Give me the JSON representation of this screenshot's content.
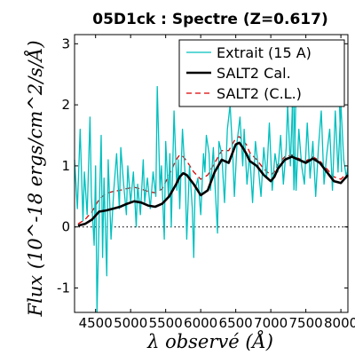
{
  "chart_data": {
    "type": "line",
    "title": "05D1ck : Spectre (Z=0.617)",
    "xlabel": "λ observé (Å)",
    "ylabel": "Flux (10^-18 ergs/cm^2/s/Å)",
    "xlim": [
      4200,
      8100
    ],
    "ylim": [
      -1.4,
      3.15
    ],
    "xticks": [
      4500,
      5000,
      5500,
      6000,
      6500,
      7000,
      7500,
      8000
    ],
    "xtick_labels": [
      "4500",
      "5000",
      "5500",
      "6000",
      "6500",
      "7000",
      "7500",
      "8000"
    ],
    "yticks": [
      -1,
      0,
      1,
      2,
      3
    ],
    "ytick_labels": [
      "-1",
      "0",
      "1",
      "2",
      "3"
    ],
    "zero_line": "dotted",
    "legend_position": "top-right",
    "series": [
      {
        "name": "Extrait (15 A)",
        "style": "solid",
        "color": "#00bfbf",
        "x": [
          4200,
          4240,
          4280,
          4320,
          4340,
          4380,
          4420,
          4440,
          4480,
          4500,
          4520,
          4560,
          4580,
          4600,
          4620,
          4660,
          4680,
          4720,
          4760,
          4800,
          4840,
          4860,
          4900,
          4940,
          4960,
          5000,
          5040,
          5080,
          5100,
          5140,
          5180,
          5200,
          5240,
          5280,
          5320,
          5360,
          5380,
          5420,
          5440,
          5480,
          5500,
          5540,
          5560,
          5580,
          5620,
          5660,
          5680,
          5700,
          5740,
          5780,
          5800,
          5840,
          5880,
          5900,
          5920,
          5960,
          6000,
          6040,
          6060,
          6080,
          6120,
          6140,
          6180,
          6200,
          6240,
          6260,
          6300,
          6340,
          6380,
          6420,
          6460,
          6480,
          6520,
          6560,
          6600,
          6620,
          6660,
          6700,
          6740,
          6780,
          6820,
          6860,
          6900,
          6940,
          6980,
          7020,
          7060,
          7100,
          7140,
          7180,
          7220,
          7240,
          7280,
          7320,
          7360,
          7400,
          7440,
          7480,
          7520,
          7560,
          7600,
          7640,
          7680,
          7720,
          7760,
          7800,
          7840,
          7880,
          7920,
          7960,
          8000,
          8040,
          8080,
          8100
        ],
        "y": [
          1.1,
          0.3,
          1.6,
          0.1,
          0.9,
          0.2,
          1.8,
          0.5,
          -0.3,
          1.0,
          -1.4,
          0.6,
          1.5,
          -0.5,
          0.8,
          -0.8,
          1.1,
          -0.2,
          0.6,
          1.2,
          0.3,
          1.3,
          0.7,
          0.2,
          1.0,
          0.4,
          0.9,
          0.0,
          0.7,
          0.2,
          1.1,
          0.4,
          0.8,
          0.3,
          0.9,
          0.5,
          2.3,
          0.6,
          1.0,
          -0.2,
          1.4,
          0.5,
          1.2,
          0.0,
          1.9,
          0.6,
          1.1,
          0.3,
          1.6,
          0.8,
          -0.2,
          1.0,
          0.3,
          -0.5,
          0.6,
          0.8,
          0.2,
          1.2,
          0.9,
          1.5,
          1.2,
          0.6,
          1.3,
          0.8,
          -0.1,
          1.4,
          1.2,
          0.4,
          1.6,
          2.0,
          1.1,
          0.5,
          1.4,
          1.8,
          1.0,
          1.6,
          0.7,
          1.2,
          0.4,
          1.4,
          1.0,
          0.5,
          1.3,
          0.8,
          1.7,
          0.6,
          1.2,
          0.9,
          1.5,
          0.7,
          1.3,
          2.0,
          1.0,
          2.4,
          0.6,
          1.6,
          1.0,
          0.7,
          1.7,
          0.8,
          1.4,
          0.5,
          1.3,
          1.9,
          0.7,
          1.2,
          1.6,
          0.6,
          1.9,
          0.9,
          2.0,
          1.1,
          0.8,
          1.0
        ],
        "x_extra": [
          7300,
          7330,
          7360,
          7980,
          8010
        ],
        "y_extra": [
          2.5,
          0.6,
          2.3,
          2.0,
          0.9
        ]
      },
      {
        "name": "SALT2 Cal.",
        "style": "solid",
        "color": "#000000",
        "x": [
          4250,
          4350,
          4450,
          4550,
          4650,
          4750,
          4850,
          4950,
          5050,
          5150,
          5250,
          5350,
          5450,
          5550,
          5650,
          5700,
          5750,
          5800,
          5900,
          6000,
          6100,
          6200,
          6300,
          6400,
          6500,
          6550,
          6600,
          6650,
          6700,
          6800,
          6900,
          7000,
          7050,
          7100,
          7200,
          7300,
          7400,
          7500,
          7600,
          7700,
          7800,
          7900,
          8000,
          8100
        ],
        "y": [
          0.02,
          0.05,
          0.12,
          0.25,
          0.27,
          0.3,
          0.33,
          0.38,
          0.42,
          0.4,
          0.35,
          0.33,
          0.38,
          0.5,
          0.7,
          0.82,
          0.88,
          0.85,
          0.7,
          0.52,
          0.6,
          0.9,
          1.1,
          1.05,
          1.35,
          1.38,
          1.3,
          1.2,
          1.08,
          1.0,
          0.85,
          0.75,
          0.82,
          0.95,
          1.1,
          1.15,
          1.1,
          1.05,
          1.12,
          1.05,
          0.9,
          0.75,
          0.72,
          0.85
        ]
      },
      {
        "name": "SALT2 (C.L.)",
        "style": "dashed",
        "color": "#dd0000",
        "x": [
          4250,
          4350,
          4450,
          4550,
          4650,
          4750,
          4850,
          4950,
          5050,
          5150,
          5250,
          5350,
          5450,
          5550,
          5650,
          5700,
          5750,
          5800,
          5900,
          6000,
          6100,
          6200,
          6300,
          6400,
          6500,
          6550,
          6600,
          6650,
          6700,
          6800,
          6900,
          7000,
          7050,
          7100,
          7200,
          7300,
          7400,
          7500,
          7600,
          7700,
          7800,
          7900,
          8000,
          8100
        ],
        "y": [
          0.05,
          0.12,
          0.25,
          0.45,
          0.55,
          0.58,
          0.6,
          0.63,
          0.65,
          0.62,
          0.58,
          0.56,
          0.62,
          0.85,
          1.1,
          1.18,
          1.15,
          1.08,
          0.9,
          0.78,
          0.85,
          1.05,
          1.25,
          1.25,
          1.45,
          1.48,
          1.42,
          1.35,
          1.22,
          1.1,
          0.95,
          0.85,
          0.9,
          1.02,
          1.15,
          1.18,
          1.12,
          1.08,
          1.15,
          1.08,
          0.95,
          0.82,
          0.78,
          0.9
        ]
      }
    ]
  }
}
